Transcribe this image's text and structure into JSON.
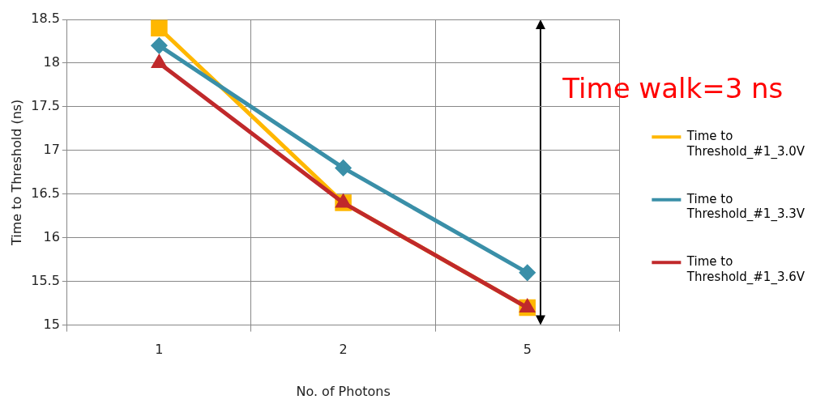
{
  "chart_data": {
    "type": "line",
    "xlabel": "No. of Photons",
    "ylabel": "Time to Threshold (ns)",
    "categories": [
      "1",
      "2",
      "5"
    ],
    "series": [
      {
        "name": "Time to Threshold_#1_3.0V",
        "color": "#ffb700",
        "marker": "square",
        "values": [
          18.4,
          16.4,
          15.2
        ]
      },
      {
        "name": "Time to Threshold_#1_3.3V",
        "color": "#3a8fa8",
        "marker": "diamond",
        "values": [
          18.2,
          16.8,
          15.6
        ]
      },
      {
        "name": "Time to Threshold_#1_3.6V",
        "color": "#c0292b",
        "marker": "triangle",
        "values": [
          18.0,
          16.4,
          15.2
        ]
      }
    ],
    "ylim": [
      15,
      18.5
    ],
    "yticks": [
      15,
      15.5,
      16,
      16.5,
      17,
      17.5,
      18,
      18.5
    ],
    "grid": true,
    "legend": "right",
    "line_style": "solid",
    "annotations": [
      "Time walk=3 ns"
    ]
  }
}
